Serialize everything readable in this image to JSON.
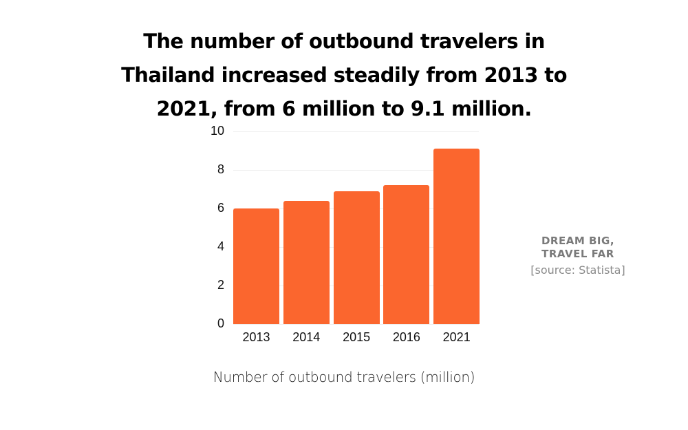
{
  "title": "The number of outbound travelers in Thailand increased steadily from 2013 to 2021, from 6 million to 9.1 million.",
  "title_lines": [
    "The number of outbound travelers in",
    "Thailand increased steadily from 2013 to",
    "2021, from 6 million to 9.1 million."
  ],
  "side": {
    "tagline_lines": [
      "DREAM BIG,",
      "TRAVEL FAR"
    ],
    "source": "[source: Statista]"
  },
  "colors": {
    "bar": "#fb662e",
    "grid": "#eeeeee",
    "tagline": "#7a7a7a"
  },
  "chart_data": {
    "type": "bar",
    "title": "The number of outbound travelers in Thailand increased steadily from 2013 to 2021, from 6 million to 9.1 million.",
    "categories": [
      "2013",
      "2014",
      "2015",
      "2016",
      "2021"
    ],
    "values": [
      6.0,
      6.4,
      6.9,
      7.2,
      9.1
    ],
    "xlabel": "Number of outbound travelers (million)",
    "ylabel": "",
    "ylim": [
      0,
      10
    ],
    "yticks": [
      "0",
      "2",
      "4",
      "6",
      "8",
      "10"
    ],
    "grid": true,
    "legend": null
  }
}
